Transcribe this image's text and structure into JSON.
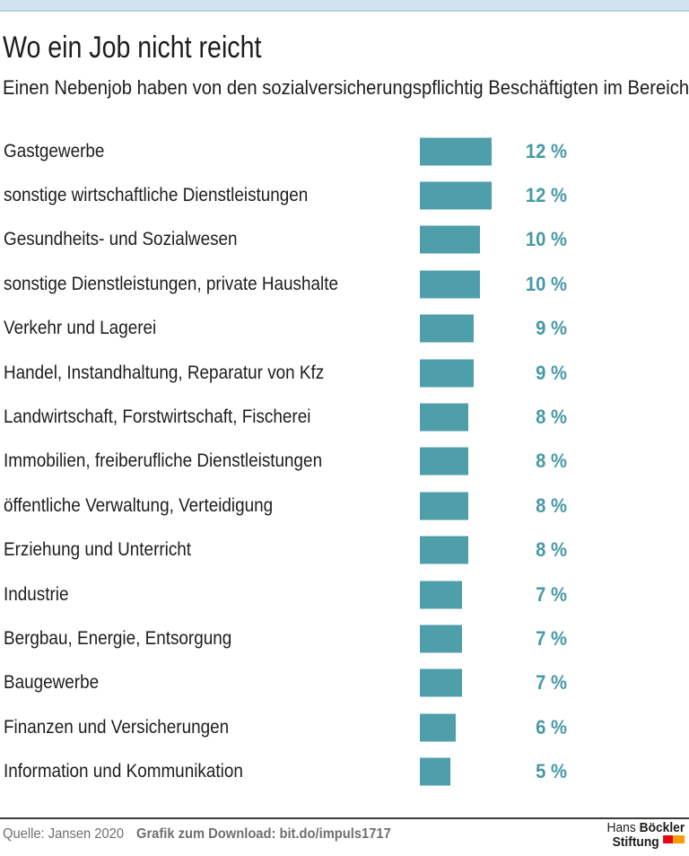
{
  "header": {
    "title": "Wo ein Job nicht reicht",
    "subtitle": "Einen Nebenjob haben von den sozialversicherungspflichtig Beschäftigten im Bereich ..."
  },
  "chart_data": {
    "type": "bar",
    "orientation": "horizontal",
    "title": "Wo ein Job nicht reicht",
    "subtitle": "Einen Nebenjob haben von den sozialversicherungspflichtig Beschäftigten im Bereich ...",
    "unit": "%",
    "value_suffix": " %",
    "xlim": [
      0,
      12
    ],
    "grid": false,
    "legend": false,
    "categories": [
      "Gastgewerbe",
      "sonstige wirtschaftliche Dienstleistungen",
      "Gesundheits- und Sozialwesen",
      "sonstige Dienstleistungen, private Haushalte",
      "Verkehr und Lagerei",
      "Handel, Instandhaltung, Reparatur von Kfz",
      "Landwirtschaft, Forstwirtschaft, Fischerei",
      "Immobilien, freiberufliche Dienstleistungen",
      "öffentliche Verwaltung, Verteidigung",
      "Erziehung und Unterricht",
      "Industrie",
      "Bergbau, Energie, Entsorgung",
      "Baugewerbe",
      "Finanzen und Versicherungen",
      "Information und Kommunikation"
    ],
    "values": [
      12,
      12,
      10,
      10,
      9,
      9,
      8,
      8,
      8,
      8,
      7,
      7,
      7,
      6,
      5
    ]
  },
  "colors": {
    "band": "#cfe4ef",
    "band_edge": "#b7d4e3",
    "bar": "#4f9faa",
    "value_text": "#4799a5",
    "text": "#1d1d1b",
    "footer_text": "#706f6f",
    "divider": "#3c3c3b",
    "logo_red": "#e30613",
    "logo_orange": "#f59c00"
  },
  "footer": {
    "source": "Quelle: Jansen 2020",
    "download": "Grafik zum Download: bit.do/impuls1717",
    "logo": {
      "line1_regular": "Hans",
      "line1_bold": "Böckler",
      "line2_bold": "Stiftung"
    }
  }
}
